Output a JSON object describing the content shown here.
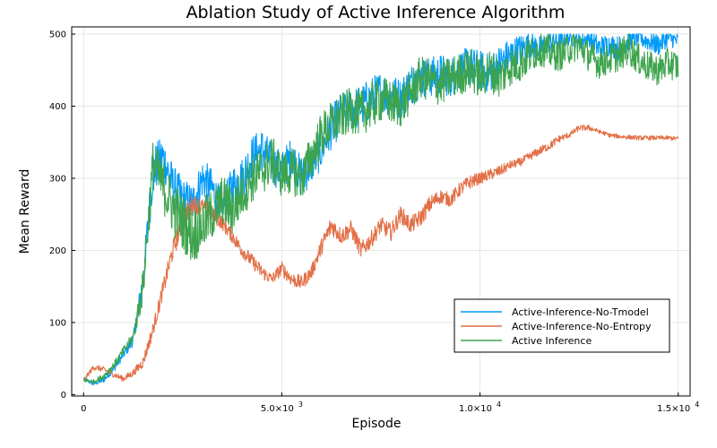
{
  "chart_data": {
    "type": "line",
    "title": "Ablation Study of Active Inference Algorithm",
    "xlabel": "Episode",
    "ylabel": "Mean Reward",
    "xlim": [
      -300,
      15300
    ],
    "ylim": [
      -2,
      510
    ],
    "grid": true,
    "legend_position": "bottom-right",
    "x_ticks": [
      {
        "value": 0,
        "label": "0",
        "exp": ""
      },
      {
        "value": 5000,
        "label": "5.0×10",
        "exp": "3"
      },
      {
        "value": 10000,
        "label": "1.0×10",
        "exp": "4"
      },
      {
        "value": 15000,
        "label": "1.5×10",
        "exp": "4"
      }
    ],
    "y_ticks": [
      {
        "value": 0,
        "label": "0"
      },
      {
        "value": 100,
        "label": "100"
      },
      {
        "value": 200,
        "label": "200"
      },
      {
        "value": 300,
        "label": "300"
      },
      {
        "value": 400,
        "label": "400"
      },
      {
        "value": 500,
        "label": "500"
      }
    ],
    "x": [
      0,
      250,
      500,
      750,
      1000,
      1250,
      1500,
      1750,
      2000,
      2250,
      2500,
      2750,
      3000,
      3250,
      3500,
      3750,
      4000,
      4250,
      4500,
      4750,
      5000,
      5250,
      5500,
      5750,
      6000,
      6250,
      6500,
      6750,
      7000,
      7250,
      7500,
      7750,
      8000,
      8250,
      8500,
      8750,
      9000,
      9250,
      9500,
      9750,
      10000,
      10250,
      10500,
      10750,
      11000,
      11250,
      11500,
      11750,
      12000,
      12250,
      12500,
      12750,
      13000,
      13250,
      13500,
      13750,
      14000,
      14250,
      14500,
      14750,
      15000
    ],
    "series": [
      {
        "name": "Active-Inference-No-Tmodel",
        "color": "#009af9",
        "values": [
          22,
          15,
          20,
          35,
          55,
          75,
          160,
          310,
          330,
          290,
          270,
          265,
          300,
          285,
          255,
          290,
          300,
          330,
          340,
          320,
          310,
          330,
          300,
          320,
          340,
          370,
          390,
          395,
          400,
          410,
          420,
          415,
          410,
          430,
          440,
          440,
          445,
          440,
          450,
          455,
          450,
          445,
          460,
          470,
          480,
          485,
          480,
          490,
          490,
          495,
          490,
          495,
          480,
          485,
          480,
          490,
          495,
          490,
          485,
          495,
          490
        ],
        "noise": [
          3,
          3,
          4,
          5,
          6,
          8,
          20,
          35,
          30,
          30,
          30,
          28,
          28,
          28,
          25,
          28,
          30,
          30,
          30,
          30,
          28,
          28,
          28,
          28,
          28,
          30,
          30,
          30,
          30,
          30,
          30,
          30,
          30,
          30,
          28,
          28,
          28,
          28,
          28,
          28,
          28,
          28,
          26,
          24,
          20,
          18,
          18,
          15,
          12,
          10,
          12,
          12,
          18,
          16,
          18,
          15,
          12,
          14,
          15,
          12,
          12
        ]
      },
      {
        "name": "Active-Inference-No-Entropy",
        "color": "#e26f46",
        "values": [
          20,
          38,
          35,
          28,
          22,
          30,
          45,
          90,
          145,
          200,
          240,
          265,
          260,
          250,
          238,
          220,
          200,
          185,
          170,
          160,
          175,
          160,
          155,
          170,
          205,
          235,
          220,
          230,
          200,
          215,
          235,
          225,
          250,
          235,
          245,
          265,
          275,
          270,
          285,
          295,
          300,
          305,
          310,
          318,
          322,
          330,
          338,
          345,
          355,
          360,
          370,
          370,
          365,
          360,
          358,
          357,
          356,
          356,
          356,
          356,
          355
        ],
        "noise": [
          2,
          4,
          4,
          4,
          4,
          5,
          8,
          10,
          12,
          14,
          15,
          14,
          12,
          12,
          10,
          10,
          10,
          10,
          10,
          8,
          10,
          10,
          10,
          10,
          12,
          14,
          12,
          12,
          12,
          12,
          12,
          12,
          12,
          12,
          12,
          12,
          10,
          10,
          10,
          10,
          8,
          8,
          8,
          6,
          6,
          6,
          6,
          6,
          5,
          4,
          4,
          4,
          3,
          3,
          3,
          3,
          3,
          3,
          3,
          3,
          3
        ]
      },
      {
        "name": "Active Inference",
        "color": "#3da44d",
        "values": [
          20,
          18,
          25,
          40,
          60,
          80,
          150,
          320,
          290,
          260,
          240,
          220,
          235,
          250,
          270,
          255,
          280,
          300,
          310,
          325,
          305,
          310,
          300,
          330,
          360,
          375,
          385,
          395,
          390,
          400,
          410,
          405,
          400,
          420,
          440,
          435,
          430,
          440,
          445,
          450,
          440,
          450,
          440,
          455,
          460,
          470,
          480,
          475,
          470,
          480,
          485,
          470,
          460,
          465,
          470,
          480,
          465,
          455,
          450,
          460,
          455
        ],
        "noise": [
          3,
          3,
          4,
          5,
          6,
          8,
          25,
          35,
          38,
          40,
          40,
          40,
          38,
          36,
          35,
          36,
          35,
          34,
          34,
          34,
          32,
          32,
          32,
          32,
          32,
          32,
          32,
          32,
          32,
          32,
          32,
          32,
          30,
          30,
          30,
          30,
          30,
          30,
          30,
          30,
          30,
          30,
          30,
          28,
          28,
          26,
          24,
          24,
          22,
          22,
          22,
          22,
          22,
          22,
          22,
          22,
          22,
          22,
          22,
          22,
          22
        ]
      }
    ]
  }
}
